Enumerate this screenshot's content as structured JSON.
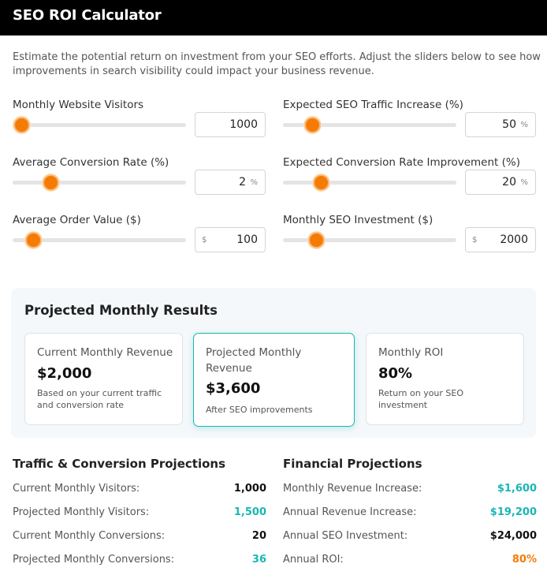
{
  "app": {
    "title": "SEO ROI Calculator"
  },
  "intro": "Estimate the potential return on investment from your SEO efforts. Adjust the sliders below to see how improvements in search visibility could impact your business revenue.",
  "inputs": {
    "visitors": {
      "label": "Monthly Website Visitors",
      "value": "1000",
      "level": 0.05
    },
    "traffic_increase": {
      "label": "Expected SEO Traffic Increase (%)",
      "value": "50",
      "unit": "%",
      "level": 0.17
    },
    "conversion_rate": {
      "label": "Average Conversion Rate (%)",
      "value": "2",
      "unit": "%",
      "level": 0.22
    },
    "conversion_improvement": {
      "label": "Expected Conversion Rate Improvement (%)",
      "value": "20",
      "unit": "%",
      "level": 0.22
    },
    "order_value": {
      "label": "Average Order Value ($)",
      "value": "100",
      "unit": "$",
      "level": 0.12
    },
    "seo_investment": {
      "label": "Monthly SEO Investment ($)",
      "value": "2000",
      "unit": "$",
      "level": 0.19
    }
  },
  "results": {
    "title": "Projected Monthly Results",
    "current_revenue": {
      "title": "Current Monthly Revenue",
      "value": "$2,000",
      "subtitle": "Based on your current traffic and conversion rate"
    },
    "projected_revenue": {
      "title": "Projected Monthly Revenue",
      "value": "$3,600",
      "subtitle": "After SEO improvements"
    },
    "roi": {
      "title": "Monthly ROI",
      "value": "80%",
      "subtitle": "Return on your SEO investment"
    }
  },
  "traffic": {
    "title": "Traffic & Conversion Projections",
    "rows": [
      {
        "label": "Current Monthly Visitors:",
        "value": "1,000"
      },
      {
        "label": "Projected Monthly Visitors:",
        "value": "1,500"
      },
      {
        "label": "Current Monthly Conversions:",
        "value": "20"
      },
      {
        "label": "Projected Monthly Conversions:",
        "value": "36"
      }
    ]
  },
  "financial": {
    "title": "Financial Projections",
    "rows": [
      {
        "label": "Monthly Revenue Increase:",
        "value": "$1,600"
      },
      {
        "label": "Annual Revenue Increase:",
        "value": "$19,200"
      },
      {
        "label": "Annual SEO Investment:",
        "value": "$24,000"
      },
      {
        "label": "Annual ROI:",
        "value": "80%"
      }
    ]
  },
  "colors": {
    "accent": "#f47c06",
    "teal": "#19b7b4",
    "header": "#000000"
  }
}
